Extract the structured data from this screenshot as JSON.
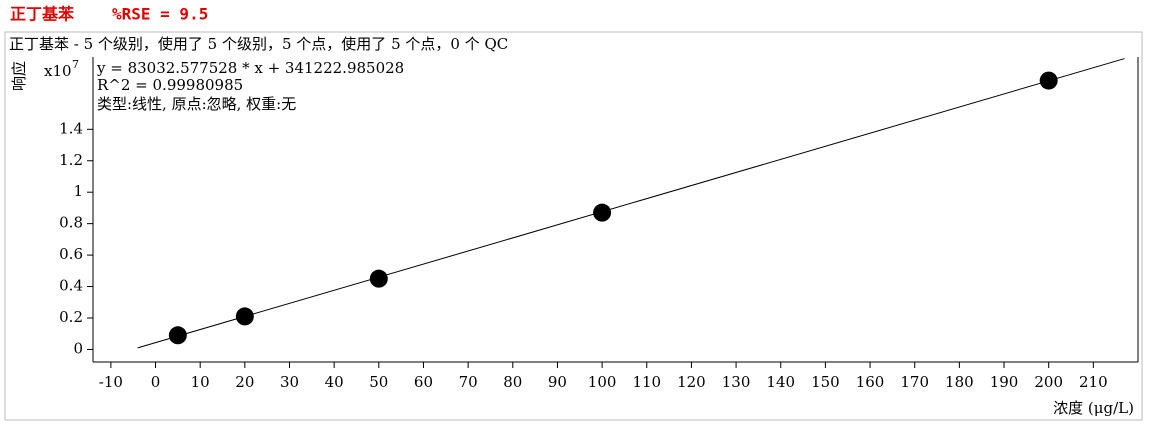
{
  "header": {
    "title": "正丁基苯",
    "rse": "%RSE = 9.5"
  },
  "chart_data": {
    "type": "scatter",
    "title": "正丁基苯 - 5 个级别，使用了 5 个级别，5 个点，使用了 5 个点，0 个 QC",
    "x_label": "浓度 (μg/L)",
    "y_label": "响应",
    "y_multiplier": "x10",
    "y_multiplier_exponent": "7",
    "annotations": [
      "y = 83032.577528 * x  + 341222.985028",
      "R^2 = 0.99980985",
      "类型:线性, 原点:忽略, 权重:无"
    ],
    "points": {
      "color": "#000000",
      "x": [
        5,
        20,
        50,
        100,
        200
      ],
      "values": [
        0.09,
        0.21,
        0.45,
        0.87,
        1.71
      ]
    },
    "fit_line": {
      "color": "#000000",
      "x": [
        -4,
        217
      ],
      "values": [
        0.01,
        1.85
      ]
    },
    "xlim": [
      -14,
      220
    ],
    "ylim": [
      -0.08,
      1.86
    ],
    "xticks": [
      -10,
      0,
      10,
      20,
      30,
      40,
      50,
      60,
      70,
      80,
      90,
      100,
      110,
      120,
      130,
      140,
      150,
      160,
      170,
      180,
      190,
      200,
      210
    ],
    "yticks": [
      0,
      0.2,
      0.4,
      0.6,
      0.8,
      1,
      1.2,
      1.4
    ]
  }
}
